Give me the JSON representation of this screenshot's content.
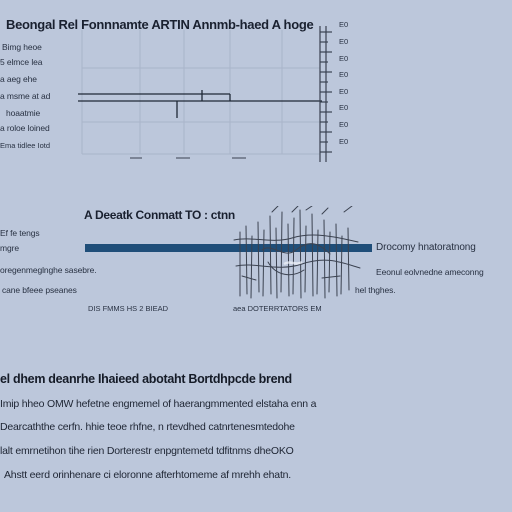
{
  "top_figure": {
    "title": "Beongal Rel Fonnnamte ARTIN Annmb-haed A hoge",
    "left_labels": [
      "Bimg heoe",
      "5 elmce lea",
      "a aeg ehe",
      "a msme at ad",
      "hoaatmie",
      "a roloe loined",
      "Ema tidlee Iotd"
    ],
    "right_axis_labels": [
      "E0",
      "E0",
      "E0",
      "E0",
      "E0",
      "E0",
      "E0",
      "E0"
    ],
    "colors": {
      "line": "#1f2937",
      "axis": "#3a4252"
    }
  },
  "middle_figure": {
    "title": "A Deeatk Conmatt TO : ctnn",
    "left_labels": [
      "Ef fe tengs",
      "mgre",
      "oregenmeglnghe sasebre.",
      "cane bfeee pseanes"
    ],
    "right_labels": [
      "Drocomy hnatoratnong",
      "Eeonul eolvnedne ameconng",
      "hel thghes."
    ],
    "bottom_labels": [
      "DIS FMMS HS 2 BIEAD",
      "aea DOTERRTATORS EM"
    ],
    "colors": {
      "bar": "#1f4e79",
      "sketch": "#3b4250"
    }
  },
  "paragraph": {
    "title": "el dhem deanrhe Ihaieed abotaht Bortdhpcde brend",
    "lines": [
      "Imip hheo OMW hefetne engmemel of haerangmmented elstaha enn a",
      "Dearcaththe cerfn. hhie teoe rhfne, n rtevdhed catnrtenesmtedohe",
      "lalt emrnetihon tihe rien Dorterestr enpgntemetd tdfitnms dheOKO",
      "Ahstt eerd orinhenare ci eloronne afterhtomeme af mrehh ehatn."
    ]
  }
}
